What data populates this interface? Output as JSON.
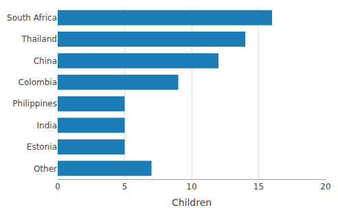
{
  "chart_data": {
    "type": "bar",
    "orientation": "horizontal",
    "categories": [
      "Other",
      "Estonia",
      "India",
      "Philippines",
      "Colombia",
      "China",
      "Thailand",
      "South Africa"
    ],
    "values": [
      7,
      5,
      5,
      5,
      9,
      12,
      14,
      16
    ],
    "color": "#1a7db5",
    "xlabel": "Children",
    "xlim": [
      0,
      20
    ],
    "xticks": [
      0,
      5,
      10,
      15,
      20
    ],
    "grid": true
  }
}
